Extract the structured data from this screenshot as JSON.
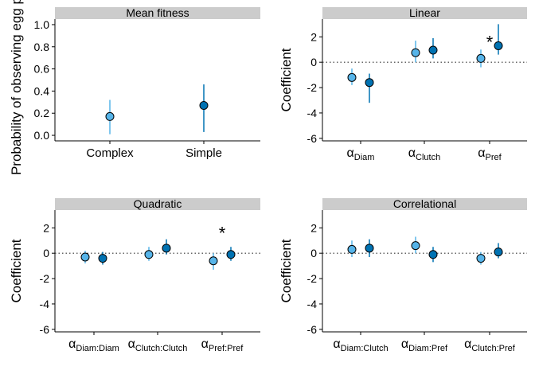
{
  "colors": {
    "series_light": "#56b4e9",
    "series_dark": "#0072b2",
    "strip_bg": "#cccccc",
    "axis": "#000000",
    "zero_line": "#333333"
  },
  "chart_data": [
    {
      "type": "scatter",
      "panel": "Mean fitness",
      "strip_label": "Mean fitness",
      "ylabel": "Probability of observing egg par",
      "xlabel": "",
      "ylim": [
        -0.05,
        1.05
      ],
      "yticks": [
        0.0,
        0.2,
        0.4,
        0.6,
        0.8,
        1.0
      ],
      "ytick_labels": [
        "0.0",
        "0.2",
        "0.4",
        "0.6",
        "0.8",
        "1.0"
      ],
      "categories": [
        {
          "base": "Complex",
          "sub": ""
        },
        {
          "base": "Simple",
          "sub": ""
        }
      ],
      "grid": false,
      "zero_line": false,
      "series": [
        {
          "color": "light",
          "x": [
            0
          ],
          "y": [
            0.17
          ],
          "lo": [
            0.01
          ],
          "hi": [
            0.32
          ]
        },
        {
          "color": "dark",
          "x": [
            1
          ],
          "y": [
            0.27
          ],
          "lo": [
            0.03
          ],
          "hi": [
            0.46
          ]
        }
      ],
      "annotations": []
    },
    {
      "type": "scatter",
      "panel": "Linear",
      "strip_label": "Linear",
      "ylabel": "Coefficient",
      "xlabel": "",
      "ylim": [
        -6.2,
        3.4
      ],
      "yticks": [
        -6,
        -4,
        -2,
        0,
        2
      ],
      "ytick_labels": [
        "-6",
        "-4",
        "-2",
        "0",
        "2"
      ],
      "categories": [
        {
          "base": "α",
          "sub": "Diam"
        },
        {
          "base": "α",
          "sub": "Clutch"
        },
        {
          "base": "α",
          "sub": "Pref"
        }
      ],
      "grid": false,
      "zero_line": true,
      "series": [
        {
          "color": "light",
          "x": [
            0,
            1,
            2
          ],
          "y": [
            -1.2,
            0.75,
            0.3
          ],
          "lo": [
            -1.8,
            0.0,
            -0.4
          ],
          "hi": [
            -0.5,
            1.7,
            1.0
          ]
        },
        {
          "color": "dark",
          "x": [
            0,
            1,
            2
          ],
          "y": [
            -1.6,
            0.95,
            1.3
          ],
          "lo": [
            -3.2,
            0.3,
            0.6
          ],
          "hi": [
            -0.9,
            1.9,
            3.0
          ]
        }
      ],
      "annotations": [
        {
          "text": "*",
          "x": 2,
          "y": 1.6
        }
      ]
    },
    {
      "type": "scatter",
      "panel": "Quadratic",
      "strip_label": "Quadratic",
      "ylabel": "Coefficient",
      "xlabel": "",
      "ylim": [
        -6.2,
        3.4
      ],
      "yticks": [
        -6,
        -4,
        -2,
        0,
        2
      ],
      "ytick_labels": [
        "-6",
        "-4",
        "-2",
        "0",
        "2"
      ],
      "categories": [
        {
          "base": "α",
          "sub": "Diam:Diam"
        },
        {
          "base": "α",
          "sub": "Clutch:Clutch"
        },
        {
          "base": "α",
          "sub": "Pref:Pref"
        }
      ],
      "grid": false,
      "zero_line": true,
      "series": [
        {
          "color": "light",
          "x": [
            0,
            1,
            2
          ],
          "y": [
            -0.3,
            -0.1,
            -0.6
          ],
          "lo": [
            -0.8,
            -0.6,
            -1.3
          ],
          "hi": [
            0.2,
            0.5,
            0.0
          ]
        },
        {
          "color": "dark",
          "x": [
            0,
            1,
            2
          ],
          "y": [
            -0.4,
            0.4,
            -0.1
          ],
          "lo": [
            -0.9,
            -0.1,
            -0.6
          ],
          "hi": [
            0.1,
            1.1,
            0.5
          ]
        }
      ],
      "annotations": [
        {
          "text": "*",
          "x": 2,
          "y": 1.6
        }
      ]
    },
    {
      "type": "scatter",
      "panel": "Correlational",
      "strip_label": "Correlational",
      "ylabel": "Coefficient",
      "xlabel": "",
      "ylim": [
        -6.2,
        3.4
      ],
      "yticks": [
        -6,
        -4,
        -2,
        0,
        2
      ],
      "ytick_labels": [
        "-6",
        "-4",
        "-2",
        "0",
        "2"
      ],
      "categories": [
        {
          "base": "α",
          "sub": "Diam:Clutch"
        },
        {
          "base": "α",
          "sub": "Diam:Pref"
        },
        {
          "base": "α",
          "sub": "Clutch:Pref"
        }
      ],
      "grid": false,
      "zero_line": true,
      "series": [
        {
          "color": "light",
          "x": [
            0,
            1,
            2
          ],
          "y": [
            0.3,
            0.6,
            -0.4
          ],
          "lo": [
            -0.3,
            0.0,
            -0.9
          ],
          "hi": [
            1.0,
            1.3,
            0.1
          ]
        },
        {
          "color": "dark",
          "x": [
            0,
            1,
            2
          ],
          "y": [
            0.4,
            -0.1,
            0.1
          ],
          "lo": [
            -0.3,
            -0.7,
            -0.4
          ],
          "hi": [
            1.1,
            0.5,
            0.8
          ]
        }
      ],
      "annotations": []
    }
  ]
}
